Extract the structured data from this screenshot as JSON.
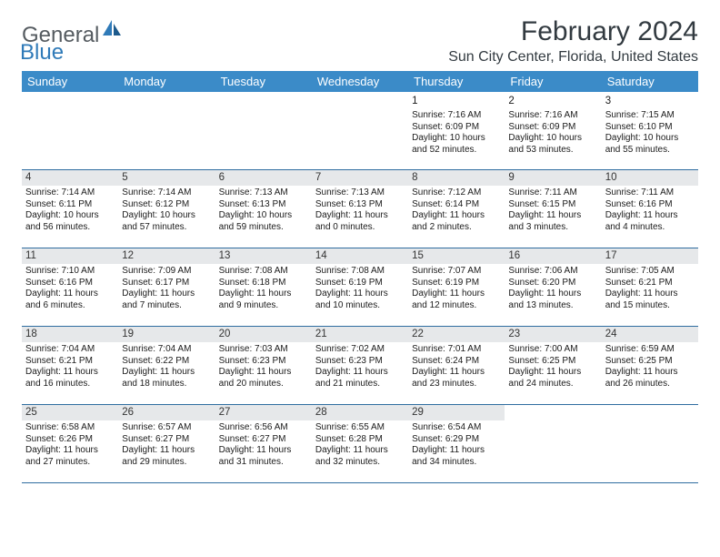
{
  "logo": {
    "general": "General",
    "blue": "Blue"
  },
  "header": {
    "month_title": "February 2024",
    "location": "Sun City Center, Florida, United States"
  },
  "colors": {
    "header_bg": "#3b8bc8",
    "row_border": "#2f6da0",
    "strip_bg": "#e6e8ea",
    "text": "#1a1a1a",
    "title": "#323a40"
  },
  "day_names": [
    "Sunday",
    "Monday",
    "Tuesday",
    "Wednesday",
    "Thursday",
    "Friday",
    "Saturday"
  ],
  "weeks": [
    [
      {
        "empty": true
      },
      {
        "empty": true
      },
      {
        "empty": true
      },
      {
        "empty": true
      },
      {
        "num": "1",
        "sunrise": "Sunrise: 7:16 AM",
        "sunset": "Sunset: 6:09 PM",
        "daylight": "Daylight: 10 hours and 52 minutes."
      },
      {
        "num": "2",
        "sunrise": "Sunrise: 7:16 AM",
        "sunset": "Sunset: 6:09 PM",
        "daylight": "Daylight: 10 hours and 53 minutes."
      },
      {
        "num": "3",
        "sunrise": "Sunrise: 7:15 AM",
        "sunset": "Sunset: 6:10 PM",
        "daylight": "Daylight: 10 hours and 55 minutes."
      }
    ],
    [
      {
        "num": "4",
        "sunrise": "Sunrise: 7:14 AM",
        "sunset": "Sunset: 6:11 PM",
        "daylight": "Daylight: 10 hours and 56 minutes."
      },
      {
        "num": "5",
        "sunrise": "Sunrise: 7:14 AM",
        "sunset": "Sunset: 6:12 PM",
        "daylight": "Daylight: 10 hours and 57 minutes."
      },
      {
        "num": "6",
        "sunrise": "Sunrise: 7:13 AM",
        "sunset": "Sunset: 6:13 PM",
        "daylight": "Daylight: 10 hours and 59 minutes."
      },
      {
        "num": "7",
        "sunrise": "Sunrise: 7:13 AM",
        "sunset": "Sunset: 6:13 PM",
        "daylight": "Daylight: 11 hours and 0 minutes."
      },
      {
        "num": "8",
        "sunrise": "Sunrise: 7:12 AM",
        "sunset": "Sunset: 6:14 PM",
        "daylight": "Daylight: 11 hours and 2 minutes."
      },
      {
        "num": "9",
        "sunrise": "Sunrise: 7:11 AM",
        "sunset": "Sunset: 6:15 PM",
        "daylight": "Daylight: 11 hours and 3 minutes."
      },
      {
        "num": "10",
        "sunrise": "Sunrise: 7:11 AM",
        "sunset": "Sunset: 6:16 PM",
        "daylight": "Daylight: 11 hours and 4 minutes."
      }
    ],
    [
      {
        "num": "11",
        "sunrise": "Sunrise: 7:10 AM",
        "sunset": "Sunset: 6:16 PM",
        "daylight": "Daylight: 11 hours and 6 minutes."
      },
      {
        "num": "12",
        "sunrise": "Sunrise: 7:09 AM",
        "sunset": "Sunset: 6:17 PM",
        "daylight": "Daylight: 11 hours and 7 minutes."
      },
      {
        "num": "13",
        "sunrise": "Sunrise: 7:08 AM",
        "sunset": "Sunset: 6:18 PM",
        "daylight": "Daylight: 11 hours and 9 minutes."
      },
      {
        "num": "14",
        "sunrise": "Sunrise: 7:08 AM",
        "sunset": "Sunset: 6:19 PM",
        "daylight": "Daylight: 11 hours and 10 minutes."
      },
      {
        "num": "15",
        "sunrise": "Sunrise: 7:07 AM",
        "sunset": "Sunset: 6:19 PM",
        "daylight": "Daylight: 11 hours and 12 minutes."
      },
      {
        "num": "16",
        "sunrise": "Sunrise: 7:06 AM",
        "sunset": "Sunset: 6:20 PM",
        "daylight": "Daylight: 11 hours and 13 minutes."
      },
      {
        "num": "17",
        "sunrise": "Sunrise: 7:05 AM",
        "sunset": "Sunset: 6:21 PM",
        "daylight": "Daylight: 11 hours and 15 minutes."
      }
    ],
    [
      {
        "num": "18",
        "sunrise": "Sunrise: 7:04 AM",
        "sunset": "Sunset: 6:21 PM",
        "daylight": "Daylight: 11 hours and 16 minutes."
      },
      {
        "num": "19",
        "sunrise": "Sunrise: 7:04 AM",
        "sunset": "Sunset: 6:22 PM",
        "daylight": "Daylight: 11 hours and 18 minutes."
      },
      {
        "num": "20",
        "sunrise": "Sunrise: 7:03 AM",
        "sunset": "Sunset: 6:23 PM",
        "daylight": "Daylight: 11 hours and 20 minutes."
      },
      {
        "num": "21",
        "sunrise": "Sunrise: 7:02 AM",
        "sunset": "Sunset: 6:23 PM",
        "daylight": "Daylight: 11 hours and 21 minutes."
      },
      {
        "num": "22",
        "sunrise": "Sunrise: 7:01 AM",
        "sunset": "Sunset: 6:24 PM",
        "daylight": "Daylight: 11 hours and 23 minutes."
      },
      {
        "num": "23",
        "sunrise": "Sunrise: 7:00 AM",
        "sunset": "Sunset: 6:25 PM",
        "daylight": "Daylight: 11 hours and 24 minutes."
      },
      {
        "num": "24",
        "sunrise": "Sunrise: 6:59 AM",
        "sunset": "Sunset: 6:25 PM",
        "daylight": "Daylight: 11 hours and 26 minutes."
      }
    ],
    [
      {
        "num": "25",
        "sunrise": "Sunrise: 6:58 AM",
        "sunset": "Sunset: 6:26 PM",
        "daylight": "Daylight: 11 hours and 27 minutes."
      },
      {
        "num": "26",
        "sunrise": "Sunrise: 6:57 AM",
        "sunset": "Sunset: 6:27 PM",
        "daylight": "Daylight: 11 hours and 29 minutes."
      },
      {
        "num": "27",
        "sunrise": "Sunrise: 6:56 AM",
        "sunset": "Sunset: 6:27 PM",
        "daylight": "Daylight: 11 hours and 31 minutes."
      },
      {
        "num": "28",
        "sunrise": "Sunrise: 6:55 AM",
        "sunset": "Sunset: 6:28 PM",
        "daylight": "Daylight: 11 hours and 32 minutes."
      },
      {
        "num": "29",
        "sunrise": "Sunrise: 6:54 AM",
        "sunset": "Sunset: 6:29 PM",
        "daylight": "Daylight: 11 hours and 34 minutes."
      },
      {
        "empty": true
      },
      {
        "empty": true
      }
    ]
  ]
}
